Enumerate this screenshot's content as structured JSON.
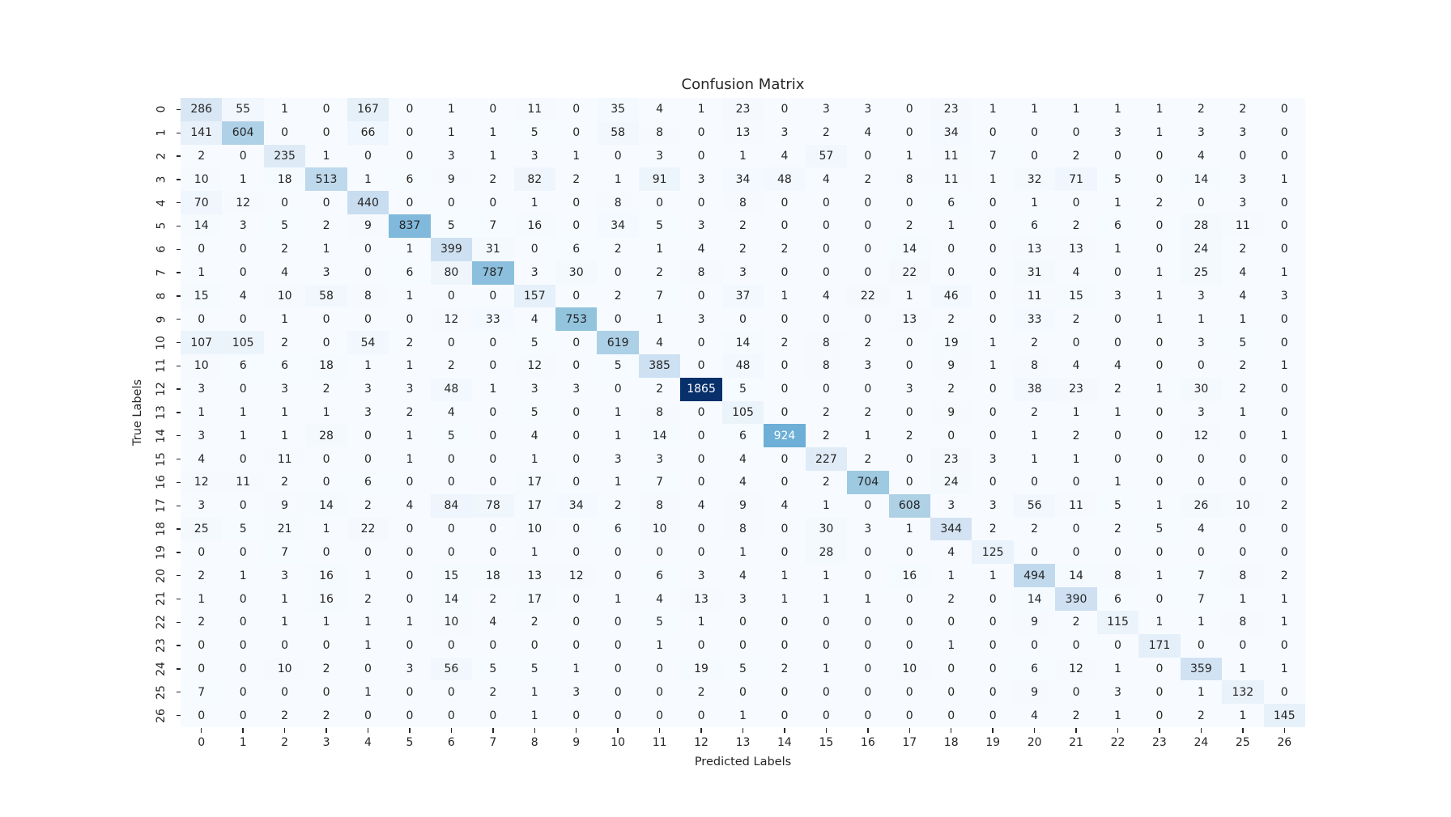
{
  "chart_data": {
    "type": "heatmap",
    "title": "Confusion Matrix",
    "xlabel": "Predicted Labels",
    "ylabel": "True Labels",
    "x_tick_labels": [
      "0",
      "1",
      "2",
      "3",
      "4",
      "5",
      "6",
      "7",
      "8",
      "9",
      "10",
      "11",
      "12",
      "13",
      "14",
      "15",
      "16",
      "17",
      "18",
      "19",
      "20",
      "21",
      "22",
      "23",
      "24",
      "25",
      "26"
    ],
    "y_tick_labels": [
      "0",
      "1",
      "2",
      "3",
      "4",
      "5",
      "6",
      "7",
      "8",
      "9",
      "10",
      "11",
      "12",
      "13",
      "14",
      "15",
      "16",
      "17",
      "18",
      "19",
      "20",
      "21",
      "22",
      "23",
      "24",
      "25",
      "26"
    ],
    "vmin": 0,
    "vmax": 1865,
    "colormap": "Blues",
    "colormap_stops": [
      [
        0.0,
        "#f7fbff"
      ],
      [
        0.125,
        "#deebf7"
      ],
      [
        0.25,
        "#c6dbef"
      ],
      [
        0.375,
        "#9ecae1"
      ],
      [
        0.5,
        "#6baed6"
      ],
      [
        0.625,
        "#4292c6"
      ],
      [
        0.75,
        "#2171b5"
      ],
      [
        0.875,
        "#08519c"
      ],
      [
        1.0,
        "#08306b"
      ]
    ],
    "colors": {
      "background": "#ffffff",
      "text": "#262626",
      "text_on_dark": "#ffffff",
      "white_text_threshold": 0.46
    },
    "matrix": [
      [
        286,
        55,
        1,
        0,
        167,
        0,
        1,
        0,
        11,
        0,
        35,
        4,
        1,
        23,
        0,
        3,
        3,
        0,
        23,
        1,
        1,
        1,
        1,
        1,
        2,
        2,
        0
      ],
      [
        141,
        604,
        0,
        0,
        66,
        0,
        1,
        1,
        5,
        0,
        58,
        8,
        0,
        13,
        3,
        2,
        4,
        0,
        34,
        0,
        0,
        0,
        3,
        1,
        3,
        3,
        0
      ],
      [
        2,
        0,
        235,
        1,
        0,
        0,
        3,
        1,
        3,
        1,
        0,
        3,
        0,
        1,
        4,
        57,
        0,
        1,
        11,
        7,
        0,
        2,
        0,
        0,
        4,
        0,
        0
      ],
      [
        10,
        1,
        18,
        513,
        1,
        6,
        9,
        2,
        82,
        2,
        1,
        91,
        3,
        34,
        48,
        4,
        2,
        8,
        11,
        1,
        32,
        71,
        5,
        0,
        14,
        3,
        1
      ],
      [
        70,
        12,
        0,
        0,
        440,
        0,
        0,
        0,
        1,
        0,
        8,
        0,
        0,
        8,
        0,
        0,
        0,
        0,
        6,
        0,
        1,
        0,
        1,
        2,
        0,
        3,
        0
      ],
      [
        14,
        3,
        5,
        2,
        9,
        837,
        5,
        7,
        16,
        0,
        34,
        5,
        3,
        2,
        0,
        0,
        0,
        2,
        1,
        0,
        6,
        2,
        6,
        0,
        28,
        11,
        0
      ],
      [
        0,
        0,
        2,
        1,
        0,
        1,
        399,
        31,
        0,
        6,
        2,
        1,
        4,
        2,
        2,
        0,
        0,
        14,
        0,
        0,
        13,
        13,
        1,
        0,
        24,
        2,
        0
      ],
      [
        1,
        0,
        4,
        3,
        0,
        6,
        80,
        787,
        3,
        30,
        0,
        2,
        8,
        3,
        0,
        0,
        0,
        22,
        0,
        0,
        31,
        4,
        0,
        1,
        25,
        4,
        1
      ],
      [
        15,
        4,
        10,
        58,
        8,
        1,
        0,
        0,
        157,
        0,
        2,
        7,
        0,
        37,
        1,
        4,
        22,
        1,
        46,
        0,
        11,
        15,
        3,
        1,
        3,
        4,
        3
      ],
      [
        0,
        0,
        1,
        0,
        0,
        0,
        12,
        33,
        4,
        753,
        0,
        1,
        3,
        0,
        0,
        0,
        0,
        13,
        2,
        0,
        33,
        2,
        0,
        1,
        1,
        1,
        0
      ],
      [
        107,
        105,
        2,
        0,
        54,
        2,
        0,
        0,
        5,
        0,
        619,
        4,
        0,
        14,
        2,
        8,
        2,
        0,
        19,
        1,
        2,
        0,
        0,
        0,
        3,
        5,
        0
      ],
      [
        10,
        6,
        6,
        18,
        1,
        1,
        2,
        0,
        12,
        0,
        5,
        385,
        0,
        48,
        0,
        8,
        3,
        0,
        9,
        1,
        8,
        4,
        4,
        0,
        0,
        2,
        1
      ],
      [
        3,
        0,
        3,
        2,
        3,
        3,
        48,
        1,
        3,
        3,
        0,
        2,
        1865,
        5,
        0,
        0,
        0,
        3,
        2,
        0,
        38,
        23,
        2,
        1,
        30,
        2,
        0
      ],
      [
        1,
        1,
        1,
        1,
        3,
        2,
        4,
        0,
        5,
        0,
        1,
        8,
        0,
        105,
        0,
        2,
        2,
        0,
        9,
        0,
        2,
        1,
        1,
        0,
        3,
        1,
        0
      ],
      [
        3,
        1,
        1,
        28,
        0,
        1,
        5,
        0,
        4,
        0,
        1,
        14,
        0,
        6,
        924,
        2,
        1,
        2,
        0,
        0,
        1,
        2,
        0,
        0,
        12,
        0,
        1
      ],
      [
        4,
        0,
        11,
        0,
        0,
        1,
        0,
        0,
        1,
        0,
        3,
        3,
        0,
        4,
        0,
        227,
        2,
        0,
        23,
        3,
        1,
        1,
        0,
        0,
        0,
        0,
        0
      ],
      [
        12,
        11,
        2,
        0,
        6,
        0,
        0,
        0,
        17,
        0,
        1,
        7,
        0,
        4,
        0,
        2,
        704,
        0,
        24,
        0,
        0,
        0,
        1,
        0,
        0,
        0,
        0
      ],
      [
        3,
        0,
        9,
        14,
        2,
        4,
        84,
        78,
        17,
        34,
        2,
        8,
        4,
        9,
        4,
        1,
        0,
        608,
        3,
        3,
        56,
        11,
        5,
        1,
        26,
        10,
        2
      ],
      [
        25,
        5,
        21,
        1,
        22,
        0,
        0,
        0,
        10,
        0,
        6,
        10,
        0,
        8,
        0,
        30,
        3,
        1,
        344,
        2,
        2,
        0,
        2,
        5,
        4,
        0,
        0
      ],
      [
        0,
        0,
        7,
        0,
        0,
        0,
        0,
        0,
        1,
        0,
        0,
        0,
        0,
        1,
        0,
        28,
        0,
        0,
        4,
        125,
        0,
        0,
        0,
        0,
        0,
        0,
        0
      ],
      [
        2,
        1,
        3,
        16,
        1,
        0,
        15,
        18,
        13,
        12,
        0,
        6,
        3,
        4,
        1,
        1,
        0,
        16,
        1,
        1,
        494,
        14,
        8,
        1,
        7,
        8,
        2
      ],
      [
        1,
        0,
        1,
        16,
        2,
        0,
        14,
        2,
        17,
        0,
        1,
        4,
        13,
        3,
        1,
        1,
        1,
        0,
        2,
        0,
        14,
        390,
        6,
        0,
        7,
        1,
        1
      ],
      [
        2,
        0,
        1,
        1,
        1,
        1,
        10,
        4,
        2,
        0,
        0,
        5,
        1,
        0,
        0,
        0,
        0,
        0,
        0,
        0,
        9,
        2,
        115,
        1,
        1,
        8,
        1
      ],
      [
        0,
        0,
        0,
        0,
        1,
        0,
        0,
        0,
        0,
        0,
        0,
        1,
        0,
        0,
        0,
        0,
        0,
        0,
        1,
        0,
        0,
        0,
        0,
        171,
        0,
        0,
        0
      ],
      [
        0,
        0,
        10,
        2,
        0,
        3,
        56,
        5,
        5,
        1,
        0,
        0,
        19,
        5,
        2,
        1,
        0,
        10,
        0,
        0,
        6,
        12,
        1,
        0,
        359,
        1,
        1
      ],
      [
        7,
        0,
        0,
        0,
        1,
        0,
        0,
        2,
        1,
        3,
        0,
        0,
        2,
        0,
        0,
        0,
        0,
        0,
        0,
        0,
        9,
        0,
        3,
        0,
        1,
        132,
        0
      ],
      [
        0,
        0,
        2,
        2,
        0,
        0,
        0,
        0,
        1,
        0,
        0,
        0,
        0,
        1,
        0,
        0,
        0,
        0,
        0,
        0,
        4,
        2,
        1,
        0,
        2,
        1,
        145
      ]
    ]
  }
}
